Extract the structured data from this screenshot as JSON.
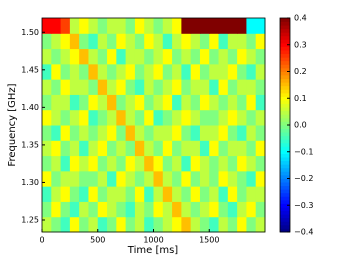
{
  "chart_data": {
    "type": "heatmap",
    "xlabel": "Time [ms]",
    "ylabel": "Frequency [GHz]",
    "xlim": [
      0,
      2000
    ],
    "xticks": [
      0,
      500,
      1000,
      1500
    ],
    "ylim": [
      1.234,
      1.519
    ],
    "yticks": [
      {
        "value": 1.25,
        "label": "1.25"
      },
      {
        "value": 1.3,
        "label": "1.30"
      },
      {
        "value": 1.35,
        "label": "1.35"
      },
      {
        "value": 1.4,
        "label": "1.40"
      },
      {
        "value": 1.45,
        "label": "1.45"
      },
      {
        "value": 1.5,
        "label": "1.50"
      }
    ],
    "colormap": "jet",
    "clim": [
      -0.4,
      0.4
    ],
    "cticks": [
      {
        "value": -0.4,
        "label": "−0.4"
      },
      {
        "value": -0.3,
        "label": "−0.3"
      },
      {
        "value": -0.2,
        "label": "−0.2"
      },
      {
        "value": -0.1,
        "label": "−0.1"
      },
      {
        "value": 0,
        "label": "0.0"
      },
      0.1,
      0.2,
      0.3,
      0.4
    ],
    "z": [
      [
        0.05,
        0,
        -0.05,
        0.1,
        0,
        0.05,
        -0.05,
        0,
        0.1,
        0,
        0.05,
        -0.05,
        0,
        0.05,
        0.1,
        0.15,
        0.05,
        0,
        -0.05,
        0.05,
        0,
        0.1,
        0,
        0.05
      ],
      [
        0,
        0.1,
        0,
        -0.05,
        0.05,
        0,
        0.1,
        0.05,
        0,
        -0.05,
        0.05,
        0,
        0.1,
        0.05,
        0.15,
        0.05,
        0,
        0.05,
        0.1,
        0,
        -0.05,
        0.05,
        0.1,
        0
      ],
      [
        -0.05,
        0.05,
        0.1,
        0,
        -0.05,
        0.1,
        0,
        0.05,
        0.05,
        0,
        0.1,
        -0.05,
        0.05,
        0.15,
        0.05,
        0,
        0.1,
        0,
        0.05,
        -0.05,
        0.1,
        0,
        0.05,
        0.05
      ],
      [
        0.1,
        0,
        0.05,
        0.05,
        0,
        0,
        0.05,
        -0.05,
        0.1,
        0.05,
        0,
        0.05,
        0.15,
        0.05,
        0,
        0.1,
        0,
        0.05,
        0,
        0.1,
        0.05,
        0,
        -0.05,
        0.1
      ],
      [
        0,
        0.05,
        -0.05,
        0.1,
        0.05,
        0.1,
        0,
        0.05,
        0,
        0.1,
        0.05,
        0.15,
        0.1,
        0,
        0.05,
        -0.05,
        0.1,
        0.05,
        0,
        0.05,
        0,
        0.1,
        0.05,
        0
      ],
      [
        0.05,
        0.1,
        0,
        0.05,
        -0.05,
        0.05,
        0.1,
        0,
        0.05,
        0,
        0.15,
        0.05,
        0,
        0.1,
        0,
        0.05,
        0.05,
        -0.05,
        0.1,
        0,
        0.05,
        0.05,
        0,
        0.1
      ],
      [
        0,
        -0.05,
        0.1,
        0,
        0.05,
        0,
        0.05,
        0.1,
        0,
        0.15,
        0.05,
        0,
        0.05,
        0.05,
        0.1,
        0,
        -0.05,
        0.05,
        0.05,
        0.1,
        0,
        -0.05,
        0.05,
        0
      ],
      [
        0.1,
        0.05,
        0,
        0.05,
        0.1,
        -0.05,
        0,
        0.05,
        0.15,
        0.05,
        0,
        0.1,
        -0.05,
        0,
        0.05,
        0.1,
        0.05,
        0,
        0,
        0.05,
        0.1,
        0.05,
        0,
        0.05
      ],
      [
        0,
        0.05,
        0.05,
        -0.05,
        0,
        0.1,
        0.05,
        0.15,
        0,
        0.05,
        0.1,
        0,
        0.05,
        0.1,
        -0.05,
        0.05,
        0,
        0.1,
        0.05,
        0,
        0.05,
        0,
        0.1,
        -0.05
      ],
      [
        0.05,
        0,
        0.1,
        0.05,
        0.05,
        0,
        0.15,
        0.05,
        0.1,
        0,
        -0.05,
        0.05,
        0,
        0.05,
        0.1,
        0,
        0.05,
        0.05,
        -0.05,
        0.1,
        0,
        0.05,
        0.05,
        0
      ],
      [
        -0.05,
        0.1,
        0,
        0.05,
        0,
        0.15,
        0.05,
        0,
        0.05,
        0.1,
        0,
        0.05,
        0.1,
        0,
        0.05,
        -0.05,
        0.1,
        0,
        0.05,
        0.05,
        0.1,
        0,
        -0.05,
        0.05
      ],
      [
        0.05,
        0,
        0.05,
        0.1,
        0.15,
        0.05,
        0,
        0.1,
        -0.05,
        0.05,
        0.05,
        0,
        0.05,
        0.1,
        0,
        0.05,
        0,
        0.1,
        0,
        0.05,
        0,
        0.1,
        0.05,
        0
      ],
      [
        0,
        0.05,
        0.1,
        0.15,
        0,
        -0.05,
        0.05,
        0,
        0.1,
        0.05,
        0,
        0.1,
        0.05,
        -0.05,
        0.05,
        0.1,
        0.05,
        0,
        0.1,
        -0.05,
        0.05,
        0.05,
        0,
        0.1
      ],
      [
        0.3,
        0.3,
        0.25,
        0.05,
        0.1,
        0.05,
        0,
        0.05,
        0.05,
        0,
        0.1,
        0.05,
        0,
        0.05,
        0.1,
        0.4,
        0.4,
        0.4,
        0.4,
        0.4,
        0.4,
        0.4,
        -0.1,
        -0.1
      ]
    ]
  }
}
